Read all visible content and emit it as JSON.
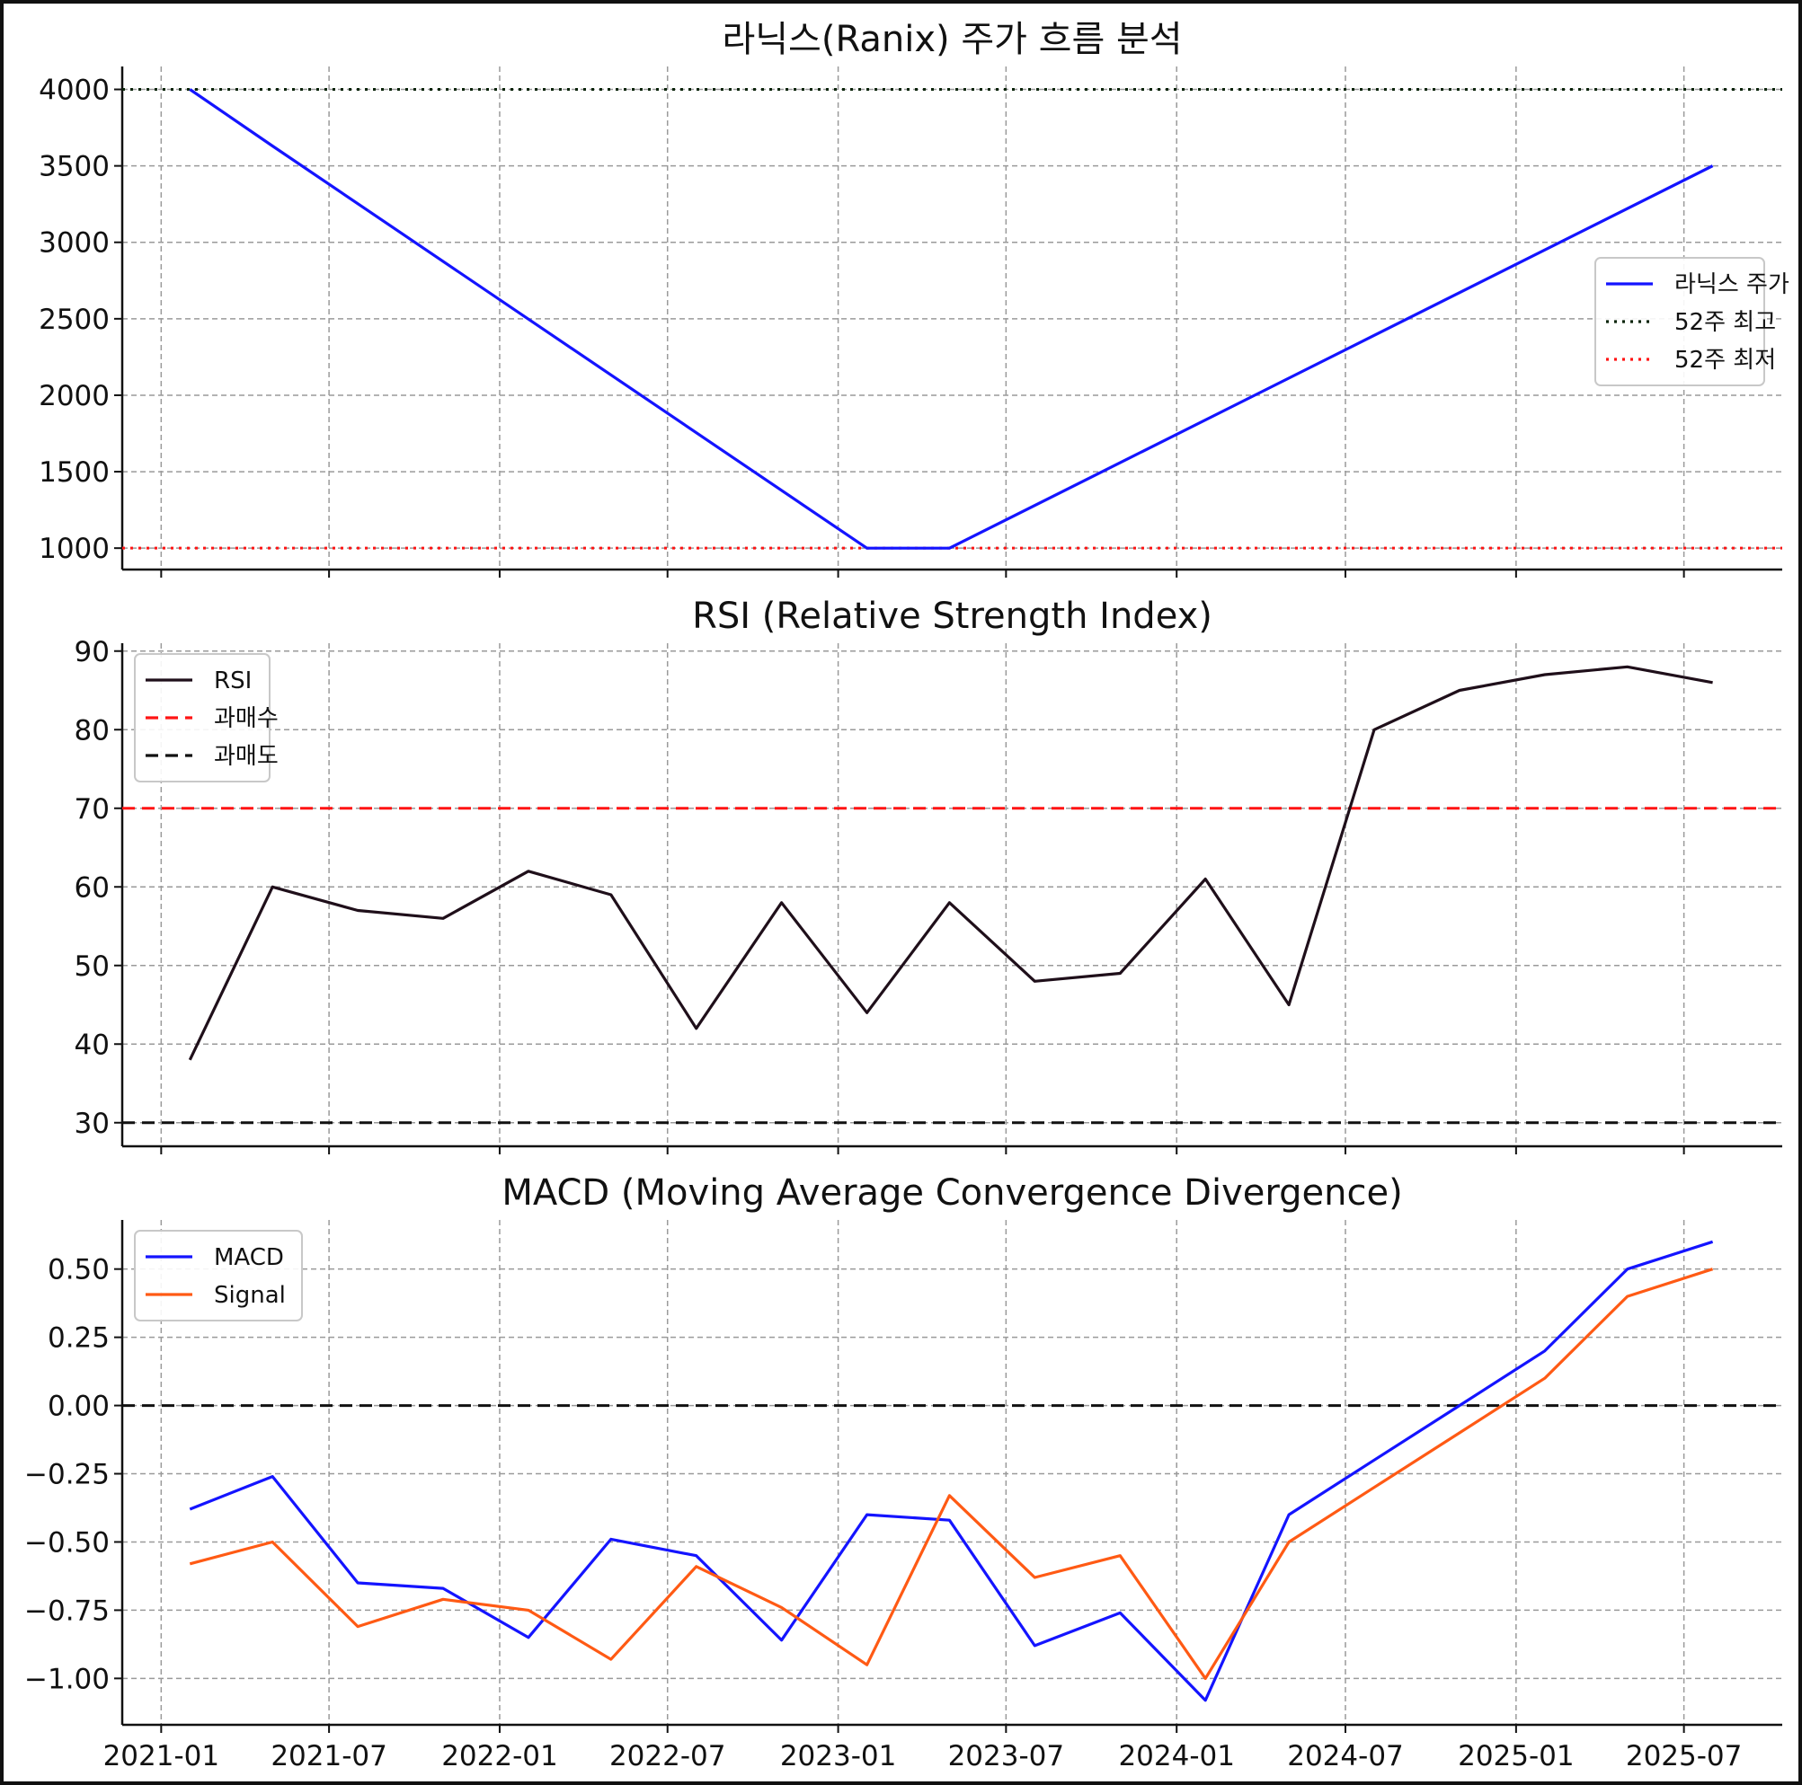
{
  "colors": {
    "blue": "#1414ff",
    "orange": "#ff5a14",
    "red": "#ff1414",
    "black": "#111111",
    "rsi": "#1f0f1a",
    "green_black": "#0a240a"
  },
  "x_ticks": [
    "2021-01",
    "2021-07",
    "2022-01",
    "2022-07",
    "2023-01",
    "2023-07",
    "2024-01",
    "2024-07",
    "2025-01",
    "2025-07"
  ],
  "chart_data": [
    {
      "type": "line",
      "title": "라닉스(Ranix) 주가 흐름 분석",
      "xlim": [
        "2020-11-20",
        "2025-10-15"
      ],
      "ylim": [
        860,
        4150
      ],
      "yticks": [
        "1000",
        "1500",
        "2000",
        "2500",
        "3000",
        "3500",
        "4000"
      ],
      "grid": true,
      "legend_position": "center-right",
      "x": [
        "2021-02-01",
        "2021-05-01",
        "2023-02-01",
        "2023-05-01",
        "2025-08-01"
      ],
      "series": [
        {
          "name": "라닉스 주가",
          "color": "blue",
          "style": "solid",
          "values": [
            4000,
            3630,
            1000,
            1000,
            3500
          ]
        }
      ],
      "hlines": [
        {
          "name": "52주 최고",
          "y": 4000,
          "color": "green_black",
          "style": "dotted"
        },
        {
          "name": "52주 최저",
          "y": 1000,
          "color": "red",
          "style": "dotted"
        }
      ]
    },
    {
      "type": "line",
      "title": "RSI (Relative Strength Index)",
      "xlim": [
        "2020-11-20",
        "2025-10-15"
      ],
      "ylim": [
        27,
        91
      ],
      "yticks": [
        "30",
        "40",
        "50",
        "60",
        "70",
        "80",
        "90"
      ],
      "grid": true,
      "legend_position": "top-left",
      "x": [
        "2021-02-01",
        "2021-05-01",
        "2021-08-01",
        "2021-11-01",
        "2022-02-01",
        "2022-05-01",
        "2022-08-01",
        "2022-11-01",
        "2023-02-01",
        "2023-05-01",
        "2023-08-01",
        "2023-11-01",
        "2024-02-01",
        "2024-05-01",
        "2024-08-01",
        "2024-11-01",
        "2025-02-01",
        "2025-05-01",
        "2025-08-01"
      ],
      "series": [
        {
          "name": "RSI",
          "color": "rsi",
          "style": "solid",
          "values": [
            38,
            60,
            57,
            56,
            62,
            59,
            42,
            58,
            44,
            58,
            48,
            49,
            61,
            45,
            80,
            85,
            87,
            88,
            86
          ]
        }
      ],
      "hlines": [
        {
          "name": "과매수",
          "y": 70,
          "color": "red",
          "style": "dashed"
        },
        {
          "name": "과매도",
          "y": 30,
          "color": "black",
          "style": "dashed"
        }
      ]
    },
    {
      "type": "line",
      "title": "MACD (Moving Average Convergence Divergence)",
      "xlim": [
        "2020-11-20",
        "2025-10-15"
      ],
      "ylim": [
        -1.17,
        0.68
      ],
      "yticks": [
        "−1.00",
        "−0.75",
        "−0.50",
        "−0.25",
        "0.00",
        "0.25",
        "0.50"
      ],
      "ytick_values": [
        -1.0,
        -0.75,
        -0.5,
        -0.25,
        0.0,
        0.25,
        0.5
      ],
      "grid": true,
      "legend_position": "top-left",
      "x": [
        "2021-02-01",
        "2021-05-01",
        "2021-08-01",
        "2021-11-01",
        "2022-02-01",
        "2022-05-01",
        "2022-08-01",
        "2022-11-01",
        "2023-02-01",
        "2023-05-01",
        "2023-08-01",
        "2023-11-01",
        "2024-02-01",
        "2024-05-01",
        "2024-08-01",
        "2024-11-01",
        "2025-02-01",
        "2025-05-01",
        "2025-08-01"
      ],
      "series": [
        {
          "name": "MACD",
          "color": "blue",
          "style": "solid",
          "values": [
            -0.38,
            -0.26,
            -0.65,
            -0.67,
            -0.85,
            -0.49,
            -0.55,
            -0.86,
            -0.4,
            -0.42,
            -0.88,
            -0.76,
            -1.08,
            -0.4,
            -0.2,
            0.0,
            0.2,
            0.5,
            0.6
          ]
        },
        {
          "name": "Signal",
          "color": "orange",
          "style": "solid",
          "values": [
            -0.58,
            -0.5,
            -0.81,
            -0.71,
            -0.75,
            -0.93,
            -0.59,
            -0.74,
            -0.95,
            -0.33,
            -0.63,
            -0.55,
            -1.0,
            -0.5,
            -0.3,
            -0.1,
            0.1,
            0.4,
            0.5
          ]
        }
      ],
      "hlines": [
        {
          "name": "",
          "y": 0,
          "color": "black",
          "style": "dashed"
        }
      ]
    }
  ]
}
